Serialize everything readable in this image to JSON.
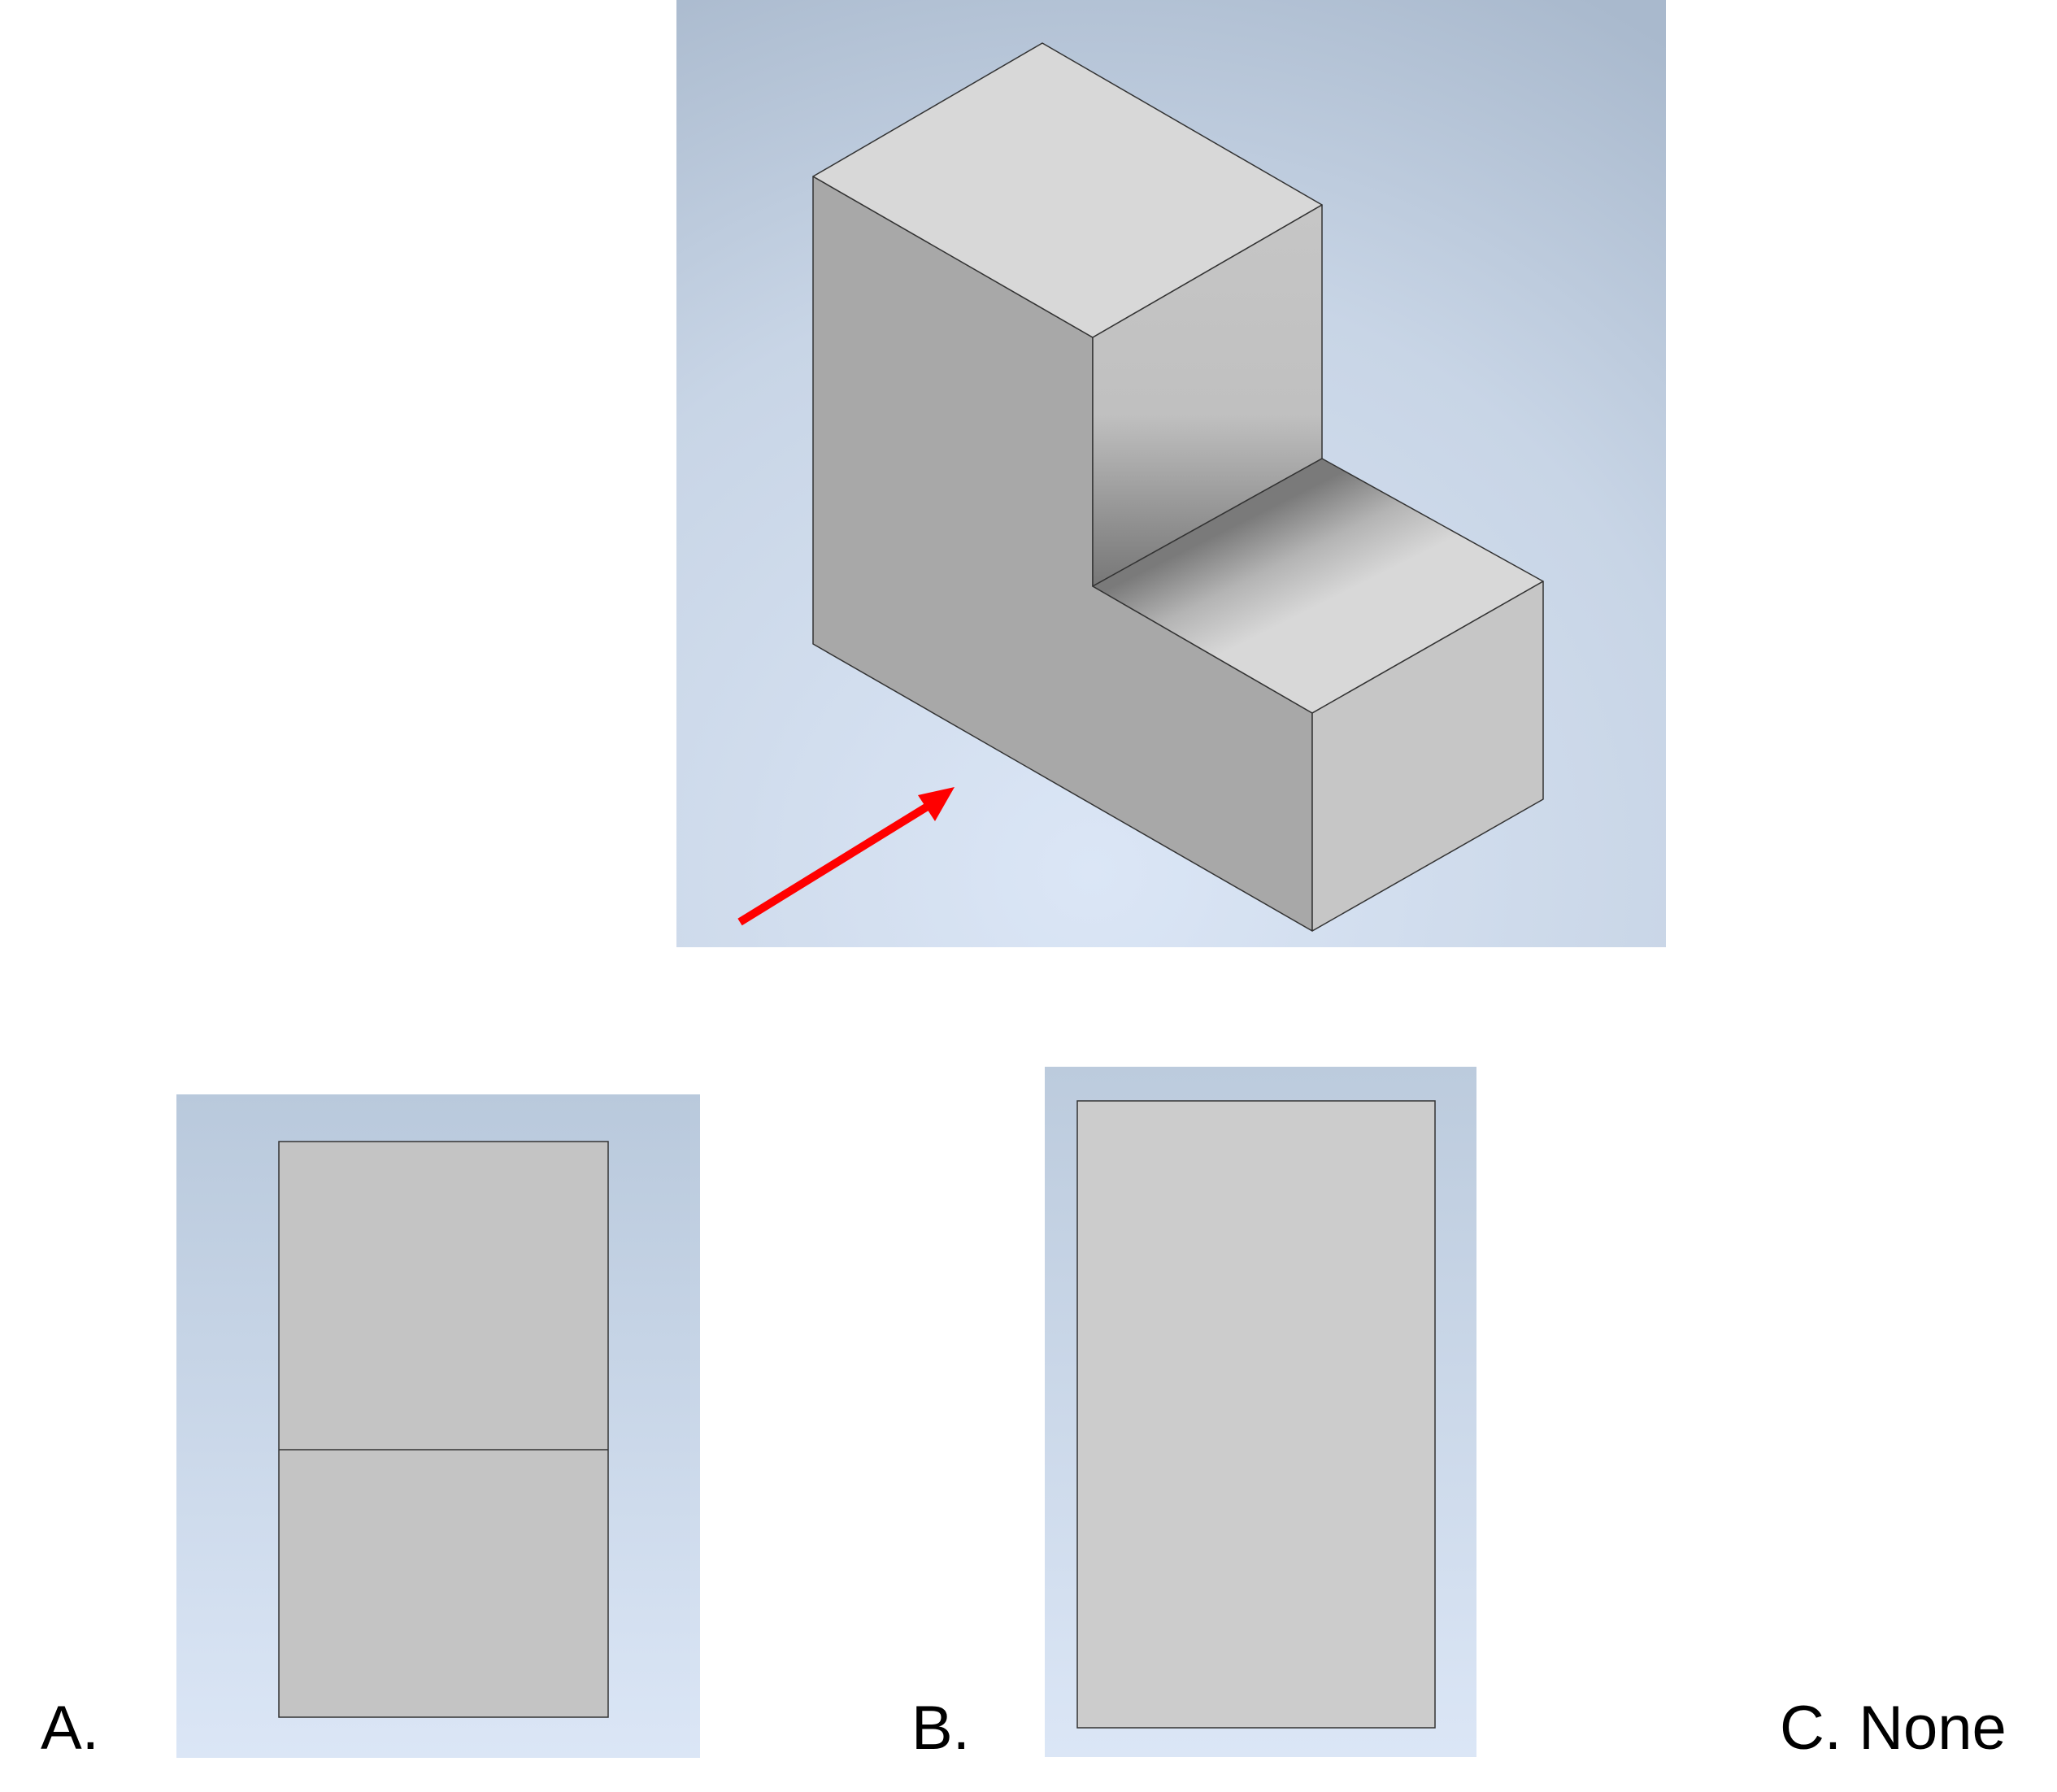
{
  "colors": {
    "viewport_bg_edge": "#a9b9cd",
    "viewport_bg_center": "#dbe6f6",
    "face_top": "#d8d8d8",
    "face_front": "#a8a8a8",
    "face_side": "#c6c6c6",
    "face_option_a": "#c4c4c4",
    "face_option_b": "#cccccc",
    "edge": "#333333",
    "arrow": "#ff0000"
  },
  "icons": {
    "view_direction": "red-arrow"
  },
  "options": [
    {
      "id": "A",
      "label": "A."
    },
    {
      "id": "B",
      "label": "B."
    },
    {
      "id": "C",
      "label": "C. None"
    }
  ]
}
